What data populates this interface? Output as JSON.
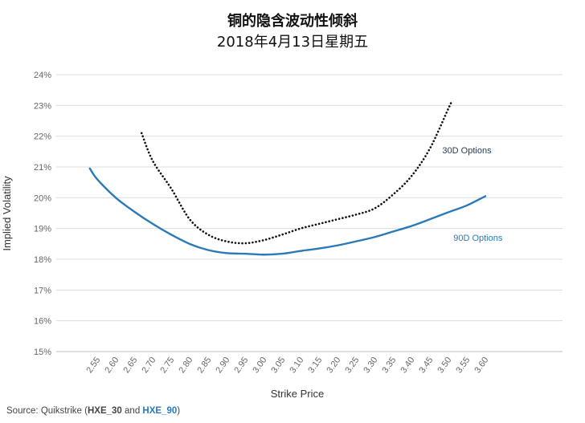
{
  "title_line1": "铜的隐含波动性倾斜",
  "title_line2": "2018年4月13日星期五",
  "source": {
    "prefix": "Source: Quikstrike (",
    "ref1": "HXE_30",
    "mid": " and ",
    "ref2": "HXE_90",
    "suffix": ")"
  },
  "chart_data": {
    "type": "line",
    "xlabel": "Strike Price",
    "ylabel": "Implied Volatility",
    "ylim": [
      15,
      24
    ],
    "y_ticks": [
      "15%",
      "16%",
      "17%",
      "18%",
      "19%",
      "20%",
      "21%",
      "22%",
      "23%",
      "24%"
    ],
    "categories": [
      "2.55",
      "2.60",
      "2.65",
      "2.70",
      "2.75",
      "2.80",
      "2.85",
      "2.90",
      "2.95",
      "3.00",
      "3.05",
      "3.10",
      "3.15",
      "3.20",
      "3.25",
      "3.30",
      "3.35",
      "3.40",
      "3.45",
      "3.50",
      "3.55",
      "3.60"
    ],
    "grid": true,
    "series": [
      {
        "name": "90D Options",
        "color": "#2a7ab8",
        "style": "solid",
        "x": [
          2.53,
          2.55,
          2.6,
          2.65,
          2.7,
          2.75,
          2.8,
          2.85,
          2.9,
          2.95,
          3.0,
          3.05,
          3.1,
          3.15,
          3.2,
          3.25,
          3.3,
          3.35,
          3.4,
          3.45,
          3.5,
          3.55,
          3.6
        ],
        "values": [
          20.95,
          20.6,
          20.0,
          19.55,
          19.15,
          18.8,
          18.5,
          18.3,
          18.2,
          18.18,
          18.15,
          18.18,
          18.27,
          18.35,
          18.45,
          18.58,
          18.72,
          18.9,
          19.08,
          19.3,
          19.53,
          19.75,
          20.05
        ]
      },
      {
        "name": "30D Options",
        "color": "#111111",
        "style": "dotted",
        "x": [
          2.67,
          2.7,
          2.75,
          2.8,
          2.85,
          2.9,
          2.95,
          3.0,
          3.05,
          3.1,
          3.15,
          3.2,
          3.25,
          3.3,
          3.35,
          3.4,
          3.45,
          3.5,
          3.51
        ],
        "values": [
          22.1,
          21.2,
          20.3,
          19.3,
          18.8,
          18.58,
          18.52,
          18.62,
          18.8,
          19.0,
          19.15,
          19.3,
          19.45,
          19.65,
          20.1,
          20.7,
          21.6,
          22.9,
          23.15
        ]
      }
    ],
    "labels": [
      {
        "text": "30D Options",
        "color": "#1f3a5c",
        "x": 3.55,
        "y": 21.45
      },
      {
        "text": "90D Options",
        "color": "#2a7ab8",
        "x": 3.58,
        "y": 18.6
      }
    ]
  }
}
